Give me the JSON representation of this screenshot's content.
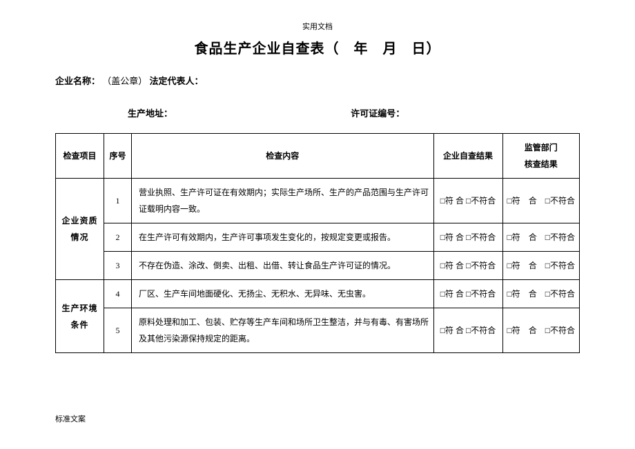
{
  "header_note": "实用文档",
  "title": "食品生产企业自查表（　年　月　日）",
  "company_label": "企业名称：",
  "seal_note": "（盖公章）",
  "legal_rep_label": "法定代表人：",
  "address_label": "生产地址：",
  "license_label": "许可证编号：",
  "headers": {
    "category": "检查项目",
    "num": "序号",
    "content": "检查内容",
    "result1": "企业自查结果",
    "result2_line1": "监管部门",
    "result2_line2": "核查结果"
  },
  "checkbox_text": "□符 合 □不符合",
  "checkbox_text2": "□符　合　□不符合",
  "categories": [
    {
      "name_line1": "企业资质",
      "name_line2": "情况",
      "rows": [
        {
          "num": "1",
          "content": "营业执照、生产许可证在有效期内；实际生产场所、生产的产品范围与生产许可证载明内容一致。"
        },
        {
          "num": "2",
          "content": "在生产许可有效期内，生产许可事项发生变化的，按规定变更或报告。"
        },
        {
          "num": "3",
          "content": "不存在伪造、涂改、倒卖、出租、出借、转让食品生产许可证的情况。"
        }
      ]
    },
    {
      "name_line1": "生产环境",
      "name_line2": "条件",
      "rows": [
        {
          "num": "4",
          "content": "厂区、生产车间地面硬化、无扬尘、无积水、无异味、无虫害。"
        },
        {
          "num": "5",
          "content": "原料处理和加工、包装、贮存等生产车间和场所卫生整洁，并与有毒、有害场所及其他污染源保持规定的距离。"
        }
      ]
    }
  ],
  "footer_note": "标准文案"
}
